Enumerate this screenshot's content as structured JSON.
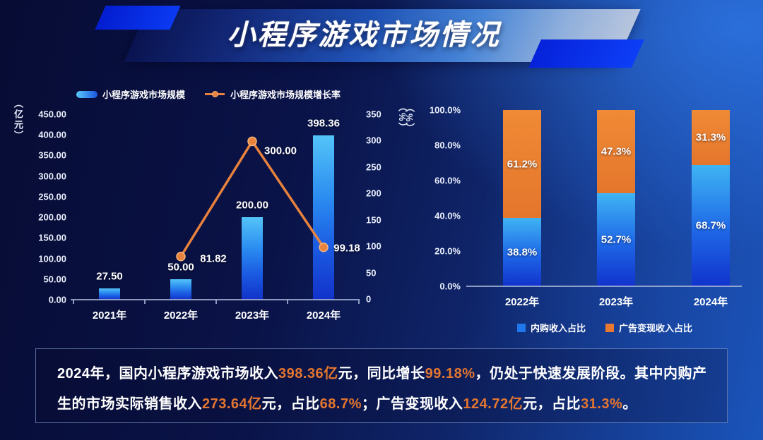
{
  "title": "小程序游戏市场情况",
  "colors": {
    "accent_blue": "#0a3af2",
    "bar_blue_top": "#54c4f8",
    "bar_blue_bottom": "#1232ca",
    "orange": "#e8823c",
    "highlight_text": "#e5762f",
    "axis_line": "#aebbdc"
  },
  "chart_data": [
    {
      "type": "bar",
      "subtype": "bar-line-combo",
      "categories": [
        "2021年",
        "2022年",
        "2023年",
        "2024年"
      ],
      "series": [
        {
          "name": "小程序游戏市场规模",
          "type": "bar",
          "axis": "left",
          "values": [
            27.5,
            50.0,
            200.0,
            398.36
          ],
          "labels": [
            "27.50",
            "50.00",
            "200.00",
            "398.36"
          ]
        },
        {
          "name": "小程序游戏市场规模增长率",
          "type": "line",
          "axis": "right",
          "values": [
            null,
            81.82,
            300.0,
            99.18
          ],
          "labels": [
            null,
            "81.82",
            "300.00",
            "99.18"
          ]
        }
      ],
      "left_axis": {
        "unit": "（亿元）",
        "min": 0,
        "max": 450,
        "step": 50,
        "ticks": [
          "0.00",
          "50.00",
          "100.00",
          "150.00",
          "200.00",
          "250.00",
          "300.00",
          "350.00",
          "400.00",
          "450.00"
        ]
      },
      "right_axis": {
        "unit": "（%）",
        "min": 0,
        "max": 350,
        "step": 50,
        "ticks": [
          "0",
          "50",
          "100",
          "150",
          "200",
          "250",
          "300",
          "350"
        ]
      },
      "grid": false,
      "legend_position": "top"
    },
    {
      "type": "bar",
      "subtype": "stacked-100",
      "categories": [
        "2022年",
        "2023年",
        "2024年"
      ],
      "series": [
        {
          "name": "内购收入占比",
          "color": "blue",
          "values": [
            38.8,
            52.7,
            68.7
          ],
          "labels": [
            "38.8%",
            "52.7%",
            "68.7%"
          ]
        },
        {
          "name": "广告变现收入占比",
          "color": "orange",
          "values": [
            61.2,
            47.3,
            31.3
          ],
          "labels": [
            "61.2%",
            "47.3%",
            "31.3%"
          ]
        }
      ],
      "y_axis": {
        "unit": "（%）",
        "min": 0,
        "max": 100,
        "step": 20,
        "ticks": [
          "0.0%",
          "20.0%",
          "40.0%",
          "60.0%",
          "80.0%",
          "100.0%"
        ]
      },
      "grid": false,
      "legend_position": "bottom"
    }
  ],
  "summary": {
    "lines": [
      [
        {
          "t": "2024年，国内小程序游戏市场收入",
          "hl": false
        },
        {
          "t": "398.36亿",
          "hl": true
        },
        {
          "t": "元，同比增长",
          "hl": false
        },
        {
          "t": "99.18%",
          "hl": true
        },
        {
          "t": "，仍处于快速发展阶段。其中内购产",
          "hl": false
        }
      ],
      [
        {
          "t": "生的市场实际销售收入",
          "hl": false
        },
        {
          "t": "273.64亿",
          "hl": true
        },
        {
          "t": "元，占比",
          "hl": false
        },
        {
          "t": "68.7%",
          "hl": true
        },
        {
          "t": "；广告变现收入",
          "hl": false
        },
        {
          "t": "124.72亿",
          "hl": true
        },
        {
          "t": "元，占比",
          "hl": false
        },
        {
          "t": "31.3%",
          "hl": true
        },
        {
          "t": "。",
          "hl": false
        }
      ]
    ]
  }
}
